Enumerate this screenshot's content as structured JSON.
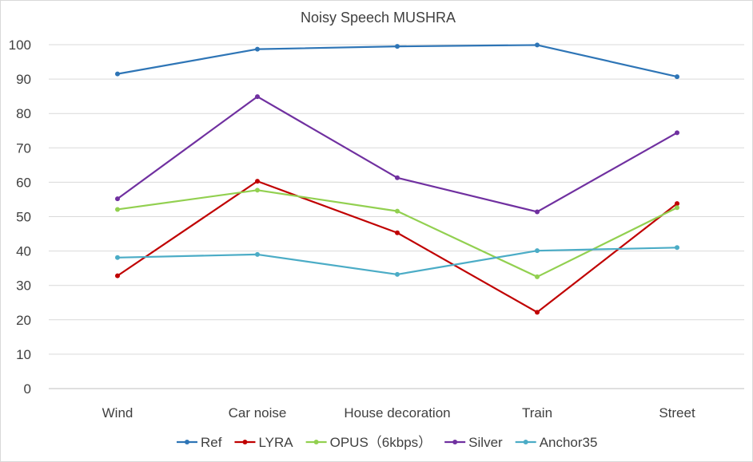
{
  "chart_data": {
    "type": "line",
    "title": "Noisy Speech MUSHRA",
    "xlabel": "",
    "ylabel": "",
    "categories": [
      "Wind",
      "Car noise",
      "House decoration",
      "Train",
      "Street"
    ],
    "ylim": [
      0,
      100
    ],
    "yticks": [
      0,
      10,
      20,
      30,
      40,
      50,
      60,
      70,
      80,
      90,
      100
    ],
    "grid": true,
    "legend": "bottom",
    "series": [
      {
        "name": "Ref",
        "color": "#2e75b6",
        "values": [
          91.5,
          98.7,
          99.5,
          99.9,
          90.7
        ]
      },
      {
        "name": "LYRA",
        "color": "#c00000",
        "values": [
          32.8,
          60.3,
          45.3,
          22.2,
          53.8
        ]
      },
      {
        "name": "OPUS（6kbps）",
        "color": "#92d050",
        "values": [
          52.1,
          57.7,
          51.6,
          32.5,
          52.6
        ]
      },
      {
        "name": "Silver",
        "color": "#7030a0",
        "values": [
          55.2,
          84.9,
          61.3,
          51.4,
          74.4
        ]
      },
      {
        "name": "Anchor35",
        "color": "#4bacc6",
        "values": [
          38.1,
          39.0,
          33.2,
          40.1,
          41.0
        ]
      }
    ]
  }
}
